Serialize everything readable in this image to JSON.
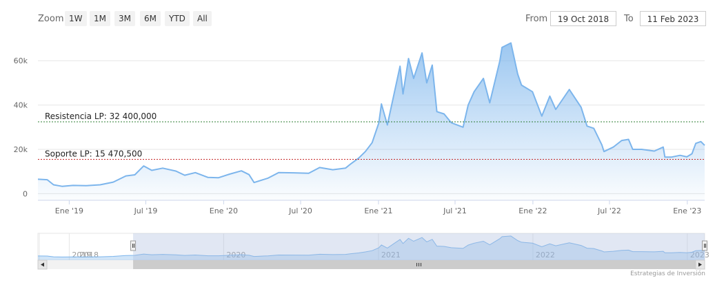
{
  "toolbar": {
    "zoom_label": "Zoom",
    "zoom_buttons": [
      "1W",
      "1M",
      "3M",
      "6M",
      "YTD",
      "All"
    ],
    "from_label": "From",
    "from_value": "19 Oct 2018",
    "to_label": "To",
    "to_value": "11 Feb 2023"
  },
  "credits": "Estrategias de Inversión",
  "navigator": {
    "year_labels": [
      "2018",
      "2019",
      "2020",
      "2021",
      "2022",
      "2023"
    ],
    "selection_start": "2019-06-01",
    "selection_end": "2023-02-11"
  },
  "colors": {
    "line": "#7cb5ec",
    "resistance_line": "#2e7d32",
    "support_line": "#c62828",
    "navigator_mask": "#aabbdd"
  },
  "chart_data": {
    "type": "area",
    "x_axis": {
      "ticks": [
        {
          "date": "2019-01-01",
          "label": "Ene '19"
        },
        {
          "date": "2019-07-01",
          "label": "Jul '19"
        },
        {
          "date": "2020-01-01",
          "label": "Ene '20"
        },
        {
          "date": "2020-07-01",
          "label": "Jul '20"
        },
        {
          "date": "2021-01-01",
          "label": "Ene '21"
        },
        {
          "date": "2021-07-01",
          "label": "Jul '21"
        },
        {
          "date": "2022-01-01",
          "label": "Ene '22"
        },
        {
          "date": "2022-07-01",
          "label": "Jul '22"
        },
        {
          "date": "2023-01-01",
          "label": "Ene '23"
        }
      ],
      "range": [
        "2018-10-19",
        "2023-02-11"
      ]
    },
    "y_axis": {
      "ticks": [
        {
          "value": 0,
          "label": "0"
        },
        {
          "value": 20000,
          "label": "20k"
        },
        {
          "value": 40000,
          "label": "40k"
        },
        {
          "value": 60000,
          "label": "60k"
        }
      ],
      "range": [
        -3000,
        70000
      ]
    },
    "grid": true,
    "plot_lines": [
      {
        "label": "Resistencia LP: 32 400,000",
        "value": 32400
      },
      {
        "label": "Soporte LP: 15 470,500",
        "value": 15470.5
      }
    ],
    "series": [
      {
        "points": [
          [
            "2018-10-19",
            6500
          ],
          [
            "2018-11-10",
            6300
          ],
          [
            "2018-11-25",
            4000
          ],
          [
            "2018-12-15",
            3300
          ],
          [
            "2019-01-10",
            3700
          ],
          [
            "2019-02-10",
            3600
          ],
          [
            "2019-03-15",
            4000
          ],
          [
            "2019-04-15",
            5200
          ],
          [
            "2019-05-15",
            8000
          ],
          [
            "2019-06-05",
            8500
          ],
          [
            "2019-06-26",
            12500
          ],
          [
            "2019-07-15",
            10500
          ],
          [
            "2019-08-10",
            11500
          ],
          [
            "2019-09-10",
            10200
          ],
          [
            "2019-10-01",
            8300
          ],
          [
            "2019-10-26",
            9500
          ],
          [
            "2019-11-25",
            7300
          ],
          [
            "2019-12-20",
            7200
          ],
          [
            "2020-01-15",
            8800
          ],
          [
            "2020-02-12",
            10300
          ],
          [
            "2020-03-01",
            8600
          ],
          [
            "2020-03-13",
            5000
          ],
          [
            "2020-04-15",
            7000
          ],
          [
            "2020-05-10",
            9500
          ],
          [
            "2020-06-15",
            9400
          ],
          [
            "2020-07-20",
            9200
          ],
          [
            "2020-08-15",
            11800
          ],
          [
            "2020-09-15",
            10800
          ],
          [
            "2020-10-15",
            11500
          ],
          [
            "2020-10-28",
            13500
          ],
          [
            "2020-11-15",
            16000
          ],
          [
            "2020-12-01",
            19000
          ],
          [
            "2020-12-17",
            23000
          ],
          [
            "2021-01-02",
            32000
          ],
          [
            "2021-01-08",
            40500
          ],
          [
            "2021-01-22",
            31000
          ],
          [
            "2021-02-08",
            46000
          ],
          [
            "2021-02-21",
            57500
          ],
          [
            "2021-02-28",
            45000
          ],
          [
            "2021-03-13",
            61000
          ],
          [
            "2021-03-25",
            52000
          ],
          [
            "2021-04-14",
            63500
          ],
          [
            "2021-04-25",
            50000
          ],
          [
            "2021-05-08",
            58000
          ],
          [
            "2021-05-19",
            37000
          ],
          [
            "2021-06-05",
            36000
          ],
          [
            "2021-06-22",
            32000
          ],
          [
            "2021-07-20",
            30000
          ],
          [
            "2021-08-01",
            40000
          ],
          [
            "2021-08-15",
            46000
          ],
          [
            "2021-09-06",
            52000
          ],
          [
            "2021-09-21",
            41000
          ],
          [
            "2021-10-15",
            60000
          ],
          [
            "2021-10-20",
            66000
          ],
          [
            "2021-11-10",
            68000
          ],
          [
            "2021-11-26",
            54000
          ],
          [
            "2021-12-05",
            49000
          ],
          [
            "2021-12-31",
            46000
          ],
          [
            "2022-01-22",
            35000
          ],
          [
            "2022-02-10",
            44000
          ],
          [
            "2022-02-24",
            38000
          ],
          [
            "2022-03-28",
            47000
          ],
          [
            "2022-04-25",
            39000
          ],
          [
            "2022-05-09",
            30500
          ],
          [
            "2022-05-25",
            29500
          ],
          [
            "2022-06-13",
            22000
          ],
          [
            "2022-06-18",
            19000
          ],
          [
            "2022-07-10",
            21000
          ],
          [
            "2022-07-30",
            24000
          ],
          [
            "2022-08-15",
            24500
          ],
          [
            "2022-08-25",
            20000
          ],
          [
            "2022-09-15",
            20000
          ],
          [
            "2022-10-15",
            19200
          ],
          [
            "2022-11-05",
            21000
          ],
          [
            "2022-11-09",
            16500
          ],
          [
            "2022-11-25",
            16500
          ],
          [
            "2022-12-15",
            17300
          ],
          [
            "2022-12-31",
            16600
          ],
          [
            "2023-01-12",
            18000
          ],
          [
            "2023-01-21",
            22700
          ],
          [
            "2023-02-02",
            23500
          ],
          [
            "2023-02-11",
            21800
          ]
        ]
      }
    ]
  }
}
